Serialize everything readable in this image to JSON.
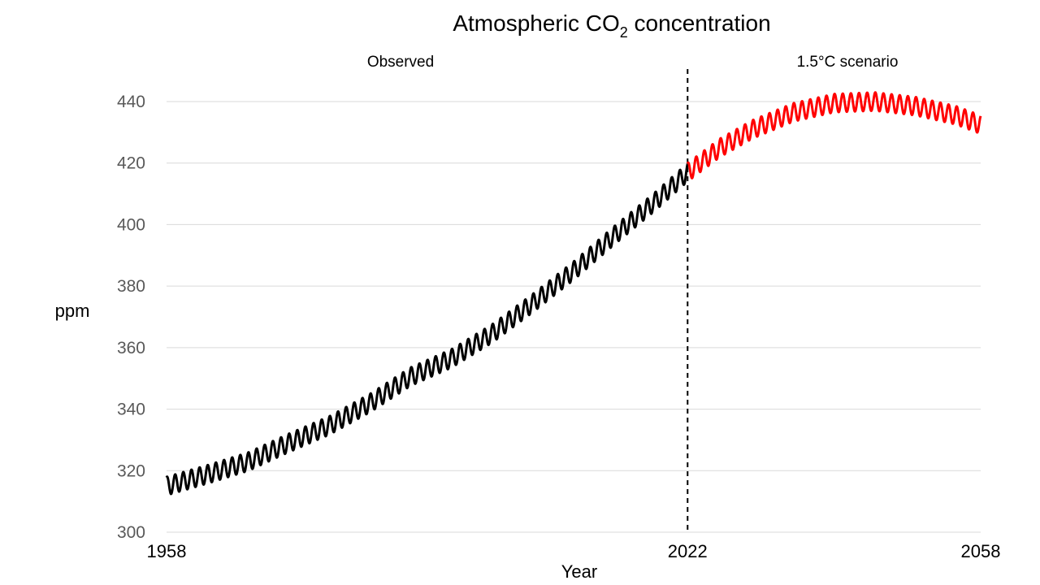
{
  "chart_data": {
    "type": "line",
    "title": "Atmospheric CO",
    "title_subscript": "2",
    "title_suffix": " concentration",
    "xlabel": "Year",
    "ylabel": "ppm",
    "ylim": [
      300,
      445
    ],
    "xlim": [
      1958,
      2058
    ],
    "grid": true,
    "yticks": [
      300,
      320,
      340,
      360,
      380,
      400,
      420,
      440
    ],
    "xticks": [
      1958,
      2022,
      2058
    ],
    "divider": {
      "x": 2022,
      "style": "dashed"
    },
    "region_labels": {
      "left": "Observed",
      "right": "1.5°C scenario"
    },
    "series": [
      {
        "color": "#000000",
        "seasonal_amplitude": 3,
        "trend": {
          "x": [
            1958,
            1963,
            1968,
            1973,
            1978,
            1983,
            1988,
            1993,
            1998,
            2003,
            2008,
            2013,
            2018,
            2022
          ],
          "y": [
            315,
            318.8,
            322.9,
            329,
            334.7,
            342,
            350.6,
            356.5,
            364.6,
            374.5,
            385,
            396.5,
            407.5,
            417
          ]
        }
      },
      {
        "color": "#ff0000",
        "seasonal_amplitude": 3,
        "trend": {
          "x": [
            2022,
            2026,
            2030,
            2035,
            2040,
            2045,
            2050,
            2055,
            2058
          ],
          "y": [
            417,
            425,
            431,
            436.5,
            439.5,
            440,
            438.5,
            435.5,
            432.5
          ]
        }
      }
    ]
  }
}
